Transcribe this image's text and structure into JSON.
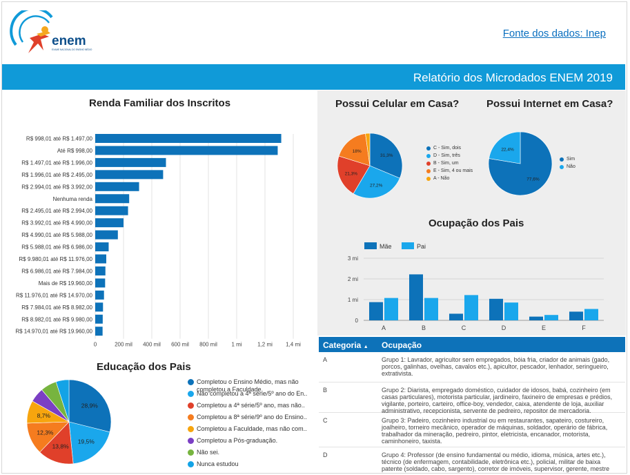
{
  "header": {
    "logo_text": "enem",
    "logo_subtext": "EXAME NACIONAL DO ENSINO MÉDIO",
    "source_link": "Fonte dos dados: Inep",
    "banner_title": "Relatório dos Microdados ENEM 2019"
  },
  "colors": {
    "primary": "#0d72b9",
    "accent": "#109ad8",
    "pai": "#1aa7ec"
  },
  "chart_data": [
    {
      "type": "bar",
      "orientation": "horizontal",
      "title": "Renda Familiar dos Inscritos",
      "categories": [
        "R$ 998,01 até R$ 1.497,00",
        "Até R$ 998,00",
        "R$ 1.497,01 até R$ 1.996,00",
        "R$ 1.996,01 até R$ 2.495,00",
        "R$ 2.994,01 até R$ 3.992,00",
        "Nenhuma renda",
        "R$ 2.495,01 até R$ 2.994,00",
        "R$ 3.992,01 até R$ 4.990,00",
        "R$ 4.990,01 até R$ 5.988,00",
        "R$ 5.988,01 até R$ 6.986,00",
        "R$ 9.980,01 até R$ 11.976,00",
        "R$ 6.986,01 até R$ 7.984,00",
        "Mais de R$ 19.960,00",
        "R$ 11.976,01 até R$ 14.970,00",
        "R$ 7.984,01 até R$ 8.982,00",
        "R$ 8.982,01 até R$ 9.980,00",
        "R$ 14.970,01 até R$ 19.960,00"
      ],
      "values": [
        1315000,
        1290000,
        500000,
        480000,
        310000,
        240000,
        232000,
        200000,
        160000,
        95000,
        78000,
        72000,
        70000,
        62000,
        55000,
        53000,
        52000
      ],
      "xticks": [
        "0",
        "200 mil",
        "400 mil",
        "600 mil",
        "800 mil",
        "1 mi",
        "1,2 mi",
        "1,4 mi"
      ],
      "xlim": [
        0,
        1400000
      ],
      "grid": true
    },
    {
      "type": "pie",
      "title": "Educação dos Pais",
      "labels": [
        "Completou o Ensino Médio, mas não completou a Faculdade.",
        "Não completou a 4ª série/5º ano do En..",
        "Completou a 4ª série/5º ano, mas não..",
        "Completou a 8ª série/9º ano do Ensino..",
        "Completou a Faculdade, mas não com..",
        "Completou a Pós-graduação.",
        "Não sei.",
        "Nunca estudou"
      ],
      "values": [
        28.9,
        19.5,
        13.8,
        12.3,
        8.7,
        5.6,
        6.2,
        5.0
      ],
      "value_labels": [
        "28,9%",
        "19,5%",
        "13,8%",
        "12,3%",
        "8,7%",
        "",
        "",
        ""
      ],
      "colors": [
        "#0d72b9",
        "#1aa7ec",
        "#e0402a",
        "#f57c1f",
        "#f7a50e",
        "#7b3fc4",
        "#77b43f",
        "#13a3e6"
      ],
      "legend": "right"
    },
    {
      "type": "pie",
      "title": "Possui Celular em Casa?",
      "labels": [
        "C - Sim, dois",
        "D - Sim, três",
        "B - Sim, um",
        "E - Sim, 4 ou mais",
        "A - Não"
      ],
      "values": [
        31.3,
        27.2,
        21.3,
        18,
        2.2
      ],
      "value_labels": [
        "31,3%",
        "27,2%",
        "21,3%",
        "18%",
        ""
      ],
      "colors": [
        "#0d72b9",
        "#1aa7ec",
        "#e0402a",
        "#f57c1f",
        "#f7a50e"
      ],
      "legend": "right"
    },
    {
      "type": "pie",
      "title": "Possui Internet em Casa?",
      "labels": [
        "Sim",
        "Não"
      ],
      "values": [
        77.6,
        22.4
      ],
      "value_labels": [
        "77,6%",
        "22,4%"
      ],
      "colors": [
        "#0d72b9",
        "#1aa7ec"
      ],
      "legend": "right"
    },
    {
      "type": "bar",
      "title": "Ocupação dos Pais",
      "categories": [
        "A",
        "B",
        "C",
        "D",
        "E",
        "F"
      ],
      "series": [
        {
          "name": "Mãe",
          "values": [
            0.88,
            2.22,
            0.32,
            1.04,
            0.18,
            0.42
          ]
        },
        {
          "name": "Pai",
          "values": [
            1.08,
            1.08,
            1.22,
            0.86,
            0.26,
            0.55
          ]
        }
      ],
      "yticks": [
        "0",
        "1 mi",
        "2 mi",
        "3 mi"
      ],
      "ylim": [
        0,
        3
      ],
      "legend": "top"
    }
  ],
  "table": {
    "headers": [
      "Categoria",
      "Ocupação"
    ],
    "sort_icon": "sort-asc-icon",
    "rows": [
      {
        "cat": "A",
        "occ": "Grupo 1: Lavrador, agricultor sem empregados, bóia fria, criador de animais (gado, porcos, galinhas, ovelhas, cavalos etc.), apicultor, pescador, lenhador, seringueiro, extrativista."
      },
      {
        "cat": "B",
        "occ": "Grupo 2: Diarista, empregado doméstico, cuidador de idosos, babá, cozinheiro (em casas particulares), motorista particular, jardineiro, faxineiro de empresas e prédios, vigilante, porteiro, carteiro, office-boy, vendedor, caixa, atendente de loja, auxiliar administrativo, recepcionista, servente de pedreiro, repositor de mercadoria."
      },
      {
        "cat": "C",
        "occ": "Grupo 3: Padeiro, cozinheiro industrial ou em restaurantes, sapateiro, costureiro, joalheiro, torneiro mecânico, operador de máquinas, soldador, operário de fábrica, trabalhador da mineração, pedreiro, pintor, eletricista, encanador, motorista, caminhoneiro, taxista."
      },
      {
        "cat": "D",
        "occ": "Grupo 4: Professor (de ensino fundamental ou médio, idioma, música, artes etc.), técnico (de enfermagem, contabilidade, eletrônica etc.), policial, militar de baixa patente (soldado, cabo, sargento), corretor de imóveis, supervisor, gerente, mestre"
      }
    ]
  }
}
